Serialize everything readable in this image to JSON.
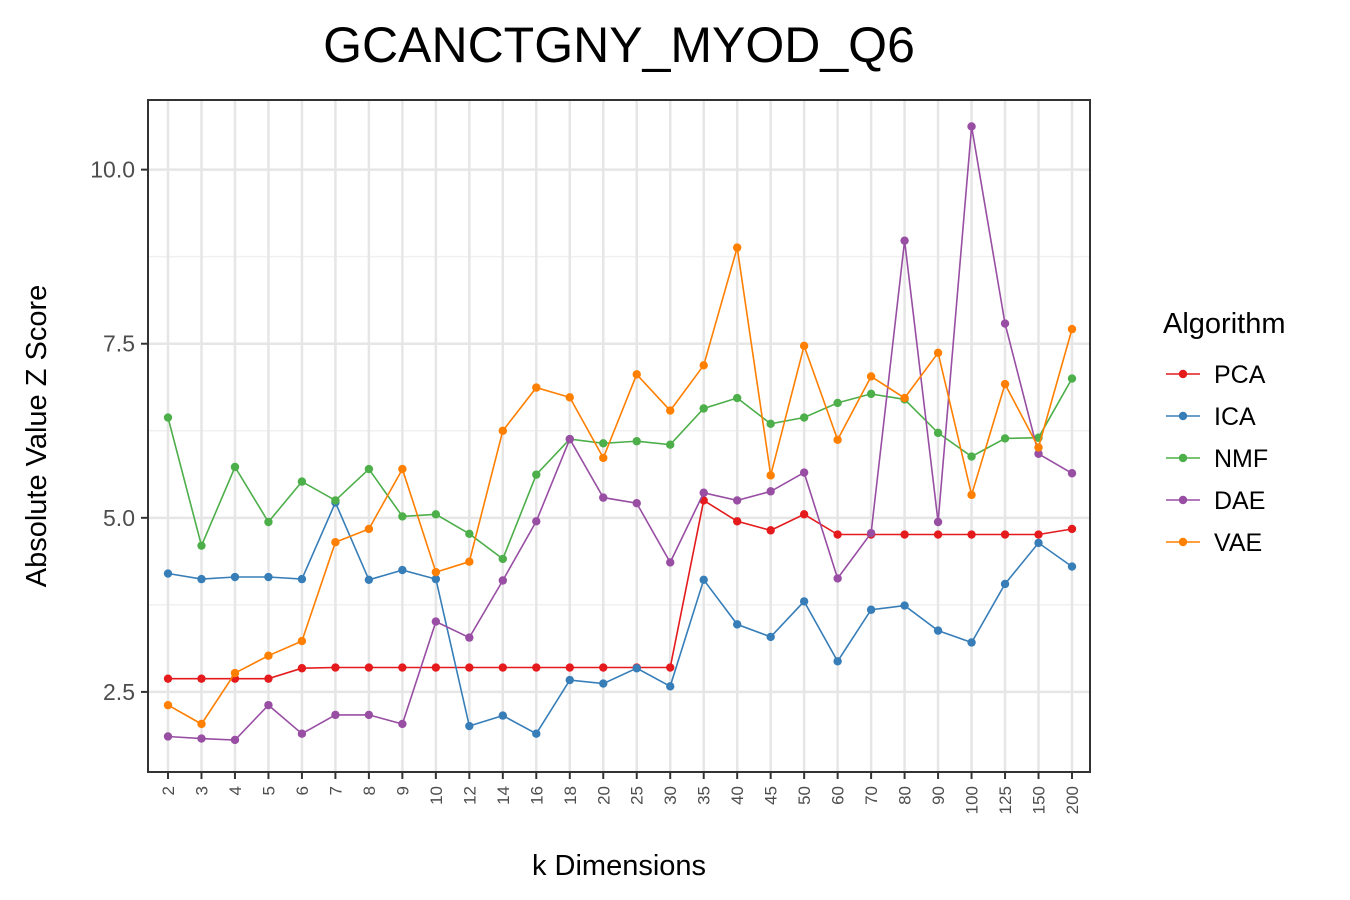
{
  "chart_data": {
    "type": "line",
    "title": "GCANCTGNY_MYOD_Q6",
    "xlabel": "k Dimensions",
    "ylabel": "Absolute Value Z Score",
    "categories": [
      "2",
      "3",
      "4",
      "5",
      "6",
      "7",
      "8",
      "9",
      "10",
      "12",
      "14",
      "16",
      "18",
      "20",
      "25",
      "30",
      "35",
      "40",
      "45",
      "50",
      "60",
      "70",
      "80",
      "90",
      "100",
      "125",
      "150",
      "200"
    ],
    "ylim": [
      1.35,
      11.0
    ],
    "yticks": [
      2.5,
      5.0,
      7.5,
      10.0
    ],
    "ytick_labels": [
      "2.5",
      "5.0",
      "7.5",
      "10.0"
    ],
    "grid": true,
    "legend": {
      "title": "Algorithm",
      "position": "right"
    },
    "series": [
      {
        "name": "PCA",
        "color": "#e41a1c",
        "values": [
          2.69,
          2.69,
          2.69,
          2.69,
          2.84,
          2.85,
          2.85,
          2.85,
          2.85,
          2.85,
          2.85,
          2.85,
          2.85,
          2.85,
          2.85,
          2.85,
          5.25,
          4.95,
          4.82,
          5.05,
          4.76,
          4.76,
          4.76,
          4.76,
          4.76,
          4.76,
          4.76,
          4.84
        ]
      },
      {
        "name": "ICA",
        "color": "#377eb8",
        "values": [
          4.2,
          4.12,
          4.15,
          4.15,
          4.12,
          5.22,
          4.11,
          4.25,
          4.12,
          2.01,
          2.16,
          1.9,
          2.67,
          2.62,
          2.84,
          2.58,
          4.11,
          3.47,
          3.29,
          3.8,
          2.94,
          3.68,
          3.74,
          3.38,
          3.21,
          4.05,
          4.64,
          4.3
        ]
      },
      {
        "name": "NMF",
        "color": "#4daf4a",
        "values": [
          6.44,
          4.6,
          5.73,
          4.94,
          5.52,
          5.25,
          5.7,
          5.02,
          5.05,
          4.77,
          4.41,
          5.62,
          6.13,
          6.07,
          6.1,
          6.05,
          6.57,
          6.72,
          6.35,
          6.44,
          6.65,
          6.78,
          6.7,
          6.22,
          5.88,
          6.14,
          6.15,
          7.0
        ]
      },
      {
        "name": "DAE",
        "color": "#984ea3",
        "values": [
          1.86,
          1.83,
          1.81,
          2.31,
          1.9,
          2.17,
          2.17,
          2.04,
          3.51,
          3.28,
          4.1,
          4.95,
          6.13,
          5.29,
          5.21,
          4.36,
          5.36,
          5.25,
          5.38,
          5.65,
          4.13,
          4.78,
          8.98,
          4.94,
          10.62,
          7.79,
          5.92,
          5.64
        ]
      },
      {
        "name": "VAE",
        "color": "#ff7f00",
        "values": [
          2.31,
          2.04,
          2.77,
          3.02,
          3.23,
          4.65,
          4.84,
          5.7,
          4.22,
          4.37,
          6.25,
          6.87,
          6.73,
          5.86,
          7.06,
          6.54,
          7.19,
          8.88,
          5.61,
          7.47,
          6.12,
          7.03,
          6.72,
          7.37,
          5.33,
          6.92,
          6.01,
          7.71
        ]
      }
    ]
  }
}
